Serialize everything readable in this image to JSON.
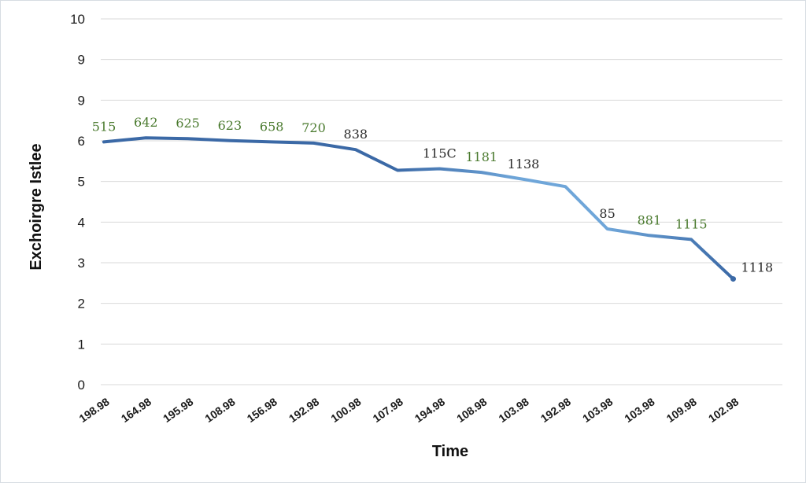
{
  "chart_data": {
    "type": "line",
    "title": "",
    "xlabel": "Time",
    "ylabel": "Exchoirgre Istlee",
    "y_ticks": [
      "0",
      "1",
      "2",
      "3",
      "4",
      "5",
      "6",
      "9",
      "9",
      "10"
    ],
    "x": [
      "198.98",
      "164.98",
      "195.98",
      "108.98",
      "156.98",
      "192.98",
      "100.98",
      "107.98",
      "194.98",
      "108.98",
      "103.98",
      "192.98",
      "103.98",
      "103.98",
      "109.98",
      "102.98"
    ],
    "series": [
      {
        "values": [
          5.97,
          6.07,
          6.05,
          6.0,
          5.97,
          5.94,
          5.78,
          5.27,
          5.31,
          5.22,
          5.05,
          4.87,
          3.83,
          3.67,
          3.57,
          2.6
        ],
        "data_labels": [
          "515",
          "642",
          "625",
          "623",
          "658",
          "720",
          "838",
          "",
          "115C",
          "1181",
          "1138",
          "",
          "85",
          "881",
          "1115",
          "1118"
        ],
        "label_colors": [
          "#4a7a2e",
          "#4a7a2e",
          "#4a7a2e",
          "#4a7a2e",
          "#4a7a2e",
          "#4a7a2e",
          "#2a2a2a",
          "",
          "#2a2a2a",
          "#4a7a2e",
          "#2a2a2a",
          "",
          "#2a2a2a",
          "#4a7a2e",
          "#4a7a2e",
          "#2a2a2a"
        ]
      }
    ],
    "ylim": [
      0,
      9
    ],
    "grid": true,
    "colors": {
      "line_dark": "#3b69a6",
      "line_light": "#6fa6d9",
      "grid": "#d9d9d9"
    }
  }
}
